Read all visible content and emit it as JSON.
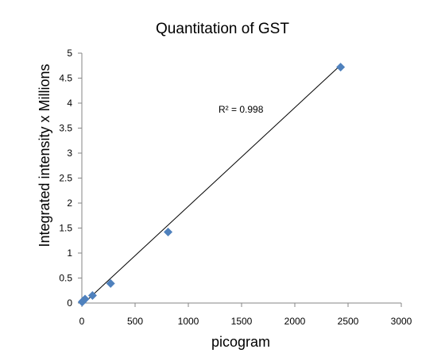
{
  "chart_data": {
    "type": "scatter",
    "title": "Quantitation of GST",
    "xlabel": "picogram",
    "ylabel": "Integrated intensity x Millions",
    "xlim": [
      0,
      3000
    ],
    "ylim": [
      0,
      5
    ],
    "xticks": [
      "0",
      "500",
      "1000",
      "1500",
      "2000",
      "2500",
      "3000"
    ],
    "yticks": [
      "0",
      "0.5",
      "1",
      "1.5",
      "2",
      "2.5",
      "3",
      "3.5",
      "4",
      "4.5",
      "5"
    ],
    "grid": false,
    "marker_color": "#4f81bd",
    "trendline_color": "#000000",
    "points": [
      {
        "x": 3,
        "y": 0.02
      },
      {
        "x": 10,
        "y": 0.04
      },
      {
        "x": 30,
        "y": 0.08
      },
      {
        "x": 100,
        "y": 0.15
      },
      {
        "x": 270,
        "y": 0.39
      },
      {
        "x": 810,
        "y": 1.42
      },
      {
        "x": 2430,
        "y": 4.72
      }
    ],
    "trendline": {
      "x": [
        0,
        2430
      ],
      "y": [
        -0.04,
        4.76
      ]
    },
    "annotation": "R² = 0.998"
  }
}
